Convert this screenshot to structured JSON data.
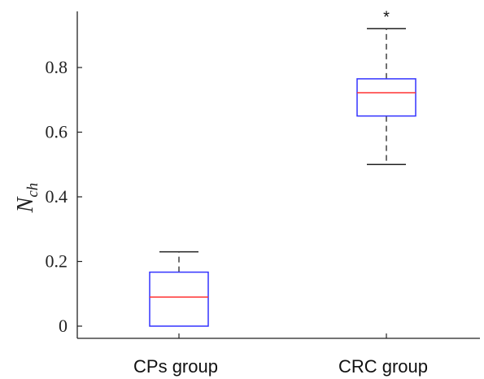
{
  "chart_data": {
    "type": "box",
    "ylabel_main": "N",
    "ylabel_sub": "ch",
    "xlabel": "",
    "ylim": [
      -0.03,
      0.95
    ],
    "y_ticks": [
      0,
      0.2,
      0.4,
      0.6,
      0.8
    ],
    "y_tick_labels": [
      "0",
      "0.2",
      "0.4",
      "0.6",
      "0.8"
    ],
    "categories": [
      "CPs group",
      "CRC group"
    ],
    "boxes": [
      {
        "category": "CPs group",
        "whisker_low": 0.0,
        "q1": 0.0,
        "median": 0.09,
        "q3": 0.167,
        "whisker_high": 0.23,
        "outliers": []
      },
      {
        "category": "CRC group",
        "whisker_low": 0.5,
        "q1": 0.65,
        "median": 0.722,
        "q3": 0.765,
        "whisker_high": 0.92,
        "outliers": [],
        "marker": "*"
      }
    ],
    "colors": {
      "box": "#3333ff",
      "median": "#ff3333",
      "whisker": "#222222",
      "axis": "#222222"
    }
  }
}
